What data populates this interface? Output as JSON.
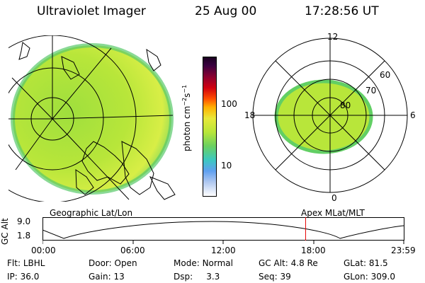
{
  "header": {
    "title": "Ultraviolet Imager",
    "date": "25 Aug 00",
    "time": "17:28:56 UT"
  },
  "colorbar": {
    "unit_label": "photon cm",
    "unit_sup1": "−2",
    "unit_mid": "s",
    "unit_sup2": "−1",
    "tick_labels": [
      "100",
      "10"
    ]
  },
  "polar_plot": {
    "hour_labels": {
      "top": "12",
      "left": "18",
      "right": "6",
      "bottom": "0"
    },
    "lat_labels": [
      "60",
      "70",
      "80"
    ]
  },
  "map_labels": {
    "left": "Geographic Lat/Lon",
    "right": "Apex MLat/MLT"
  },
  "timeline": {
    "axis_title": "GC Alt",
    "y_ticks": [
      "9.0",
      "1.8"
    ],
    "x_ticks": [
      "00:00",
      "06:00",
      "12:00",
      "18:00",
      "23:59"
    ],
    "current_time_hours": 17.48
  },
  "footer": {
    "row1": [
      {
        "label": "Flt:",
        "value": "LBHL"
      },
      {
        "label": "Door:",
        "value": "Open"
      },
      {
        "label": "Mode:",
        "value": "Normal"
      },
      {
        "label": "GC Alt:",
        "value": "4.8 Re"
      },
      {
        "label": "GLat:",
        "value": "81.5"
      }
    ],
    "row2": [
      {
        "label": "IP:",
        "value": "36.0"
      },
      {
        "label": "Gain:",
        "value": "13"
      },
      {
        "label": "Dsp:",
        "value": "3.3"
      },
      {
        "label": "Seq:",
        "value": "39"
      },
      {
        "label": "GLon:",
        "value": "309.0"
      }
    ]
  },
  "colors": {
    "accent_line": "#e60000",
    "aurora_main": "#b8e63a",
    "aurora_edge": "#6fd05a"
  }
}
